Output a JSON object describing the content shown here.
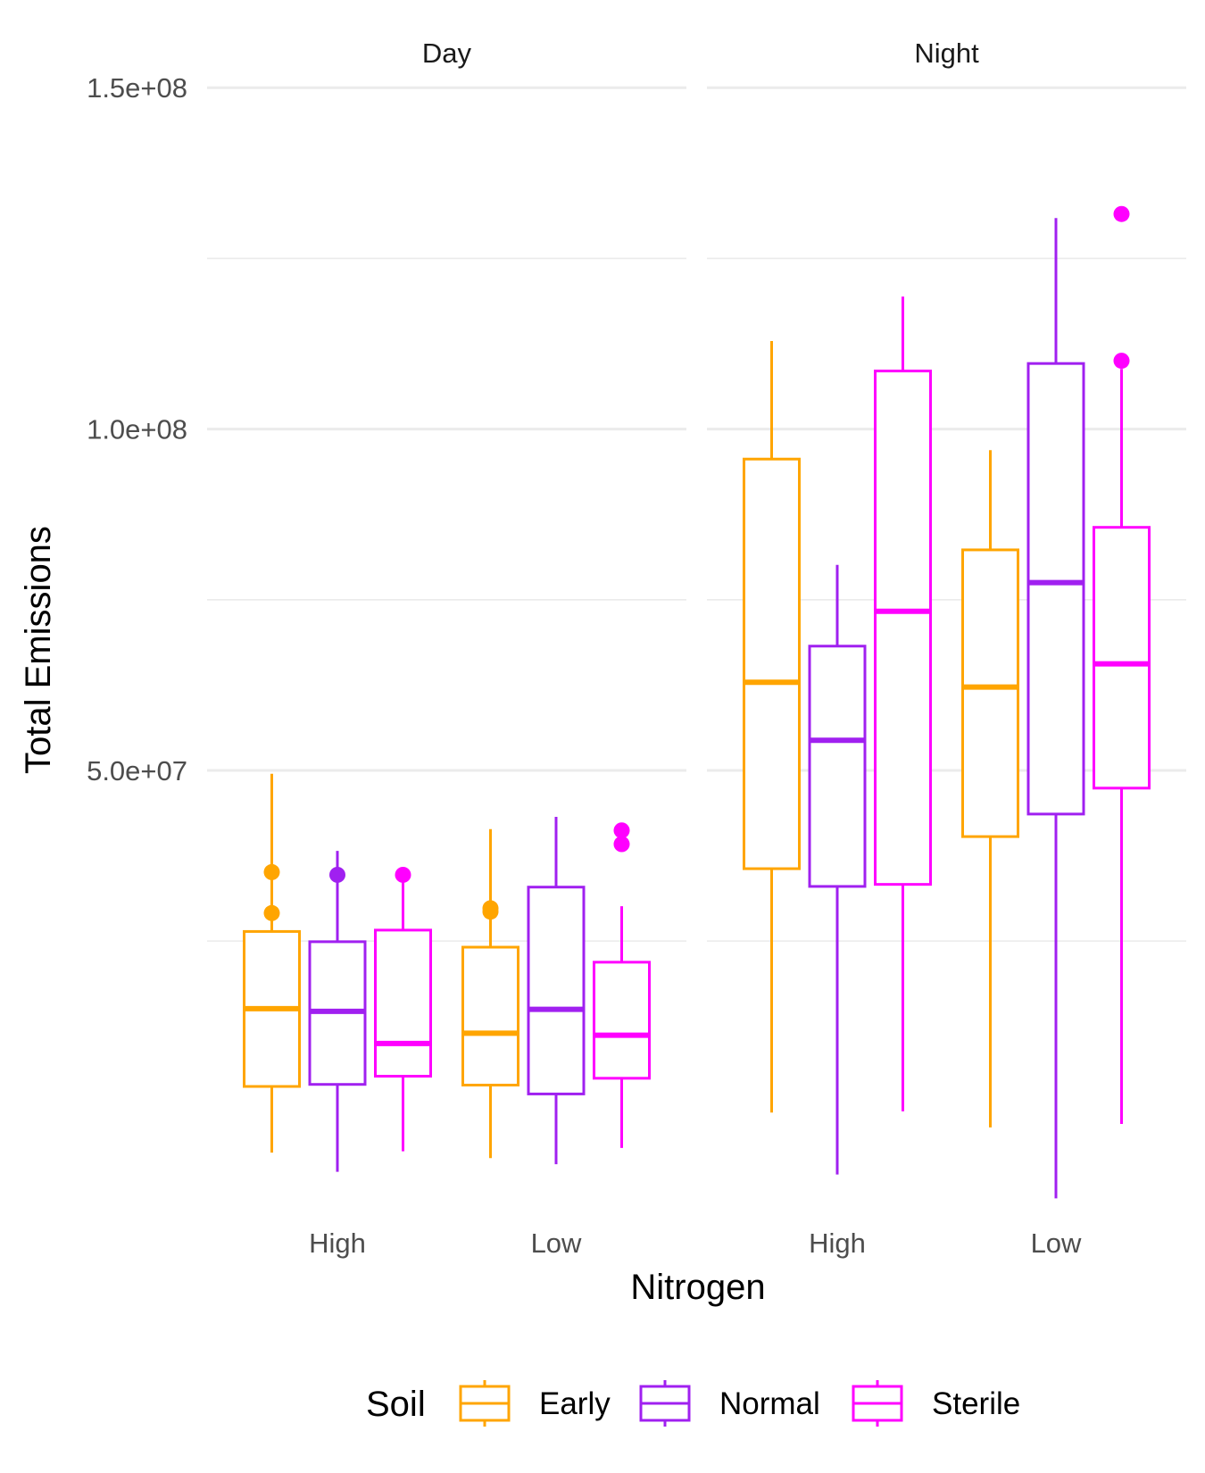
{
  "chart_data": {
    "type": "box",
    "facet_var": "Time",
    "facets": [
      "Day",
      "Night"
    ],
    "xlabel": "Nitrogen",
    "ylabel": "Total Emissions",
    "categories": [
      "High",
      "Low"
    ],
    "ylim": [
      -15000000,
      155000000
    ],
    "y_ticks": [
      50000000,
      100000000,
      150000000
    ],
    "y_tick_labels": [
      "5.0e+07",
      "1.0e+08",
      "1.5e+08"
    ],
    "y_minor_ticks": [
      25000000,
      75000000,
      125000000
    ],
    "grid": true,
    "legend": {
      "title": "Soil",
      "position": "bottom",
      "items": [
        {
          "name": "Early",
          "color": "#FFA500"
        },
        {
          "name": "Normal",
          "color": "#A020F0"
        },
        {
          "name": "Sterile",
          "color": "#FF00FF"
        }
      ]
    },
    "panels": [
      {
        "facet": "Day",
        "groups": [
          {
            "category": "High",
            "soil": "Early",
            "whisker_low": -6000000,
            "q1": 3700000,
            "median": 15100000,
            "q3": 26400000,
            "whisker_high": 49500000,
            "outliers": [
              35100000,
              29100000
            ]
          },
          {
            "category": "High",
            "soil": "Normal",
            "whisker_low": -8800000,
            "q1": 4000000,
            "median": 14700000,
            "q3": 24900000,
            "whisker_high": 38200000,
            "outliers": [
              34700000
            ]
          },
          {
            "category": "High",
            "soil": "Sterile",
            "whisker_low": -5800000,
            "q1": 5200000,
            "median": 10000000,
            "q3": 26600000,
            "whisker_high": 34400000,
            "outliers": [
              34700000
            ]
          },
          {
            "category": "Low",
            "soil": "Early",
            "whisker_low": -6800000,
            "q1": 3900000,
            "median": 11500000,
            "q3": 24100000,
            "whisker_high": 41400000,
            "outliers": [
              29800000,
              29300000
            ]
          },
          {
            "category": "Low",
            "soil": "Normal",
            "whisker_low": -7700000,
            "q1": 2600000,
            "median": 15000000,
            "q3": 32900000,
            "whisker_high": 43200000,
            "outliers": []
          },
          {
            "category": "Low",
            "soil": "Sterile",
            "whisker_low": -5300000,
            "q1": 4900000,
            "median": 11200000,
            "q3": 21900000,
            "whisker_high": 30100000,
            "outliers": [
              39200000,
              41200000
            ]
          }
        ]
      },
      {
        "facet": "Night",
        "groups": [
          {
            "category": "High",
            "soil": "Early",
            "whisker_low": -130000,
            "q1": 35600000,
            "median": 62900000,
            "q3": 95600000,
            "whisker_high": 112900000,
            "outliers": []
          },
          {
            "category": "High",
            "soil": "Normal",
            "whisker_low": -9200000,
            "q1": 33000000,
            "median": 54400000,
            "q3": 68200000,
            "whisker_high": 80100000,
            "outliers": []
          },
          {
            "category": "High",
            "soil": "Sterile",
            "whisker_low": 58000,
            "q1": 33300000,
            "median": 73300000,
            "q3": 108500000,
            "whisker_high": 119400000,
            "outliers": []
          },
          {
            "category": "Low",
            "soil": "Early",
            "whisker_low": -2300000,
            "q1": 40300000,
            "median": 62200000,
            "q3": 82300000,
            "whisker_high": 96900000,
            "outliers": []
          },
          {
            "category": "Low",
            "soil": "Normal",
            "whisker_low": -12700000,
            "q1": 43600000,
            "median": 77500000,
            "q3": 109600000,
            "whisker_high": 130900000,
            "outliers": []
          },
          {
            "category": "Low",
            "soil": "Sterile",
            "whisker_low": -1800000,
            "q1": 47400000,
            "median": 65600000,
            "q3": 85600000,
            "whisker_high": 108800000,
            "outliers": [
              110000000,
              131500000
            ]
          }
        ]
      }
    ]
  }
}
